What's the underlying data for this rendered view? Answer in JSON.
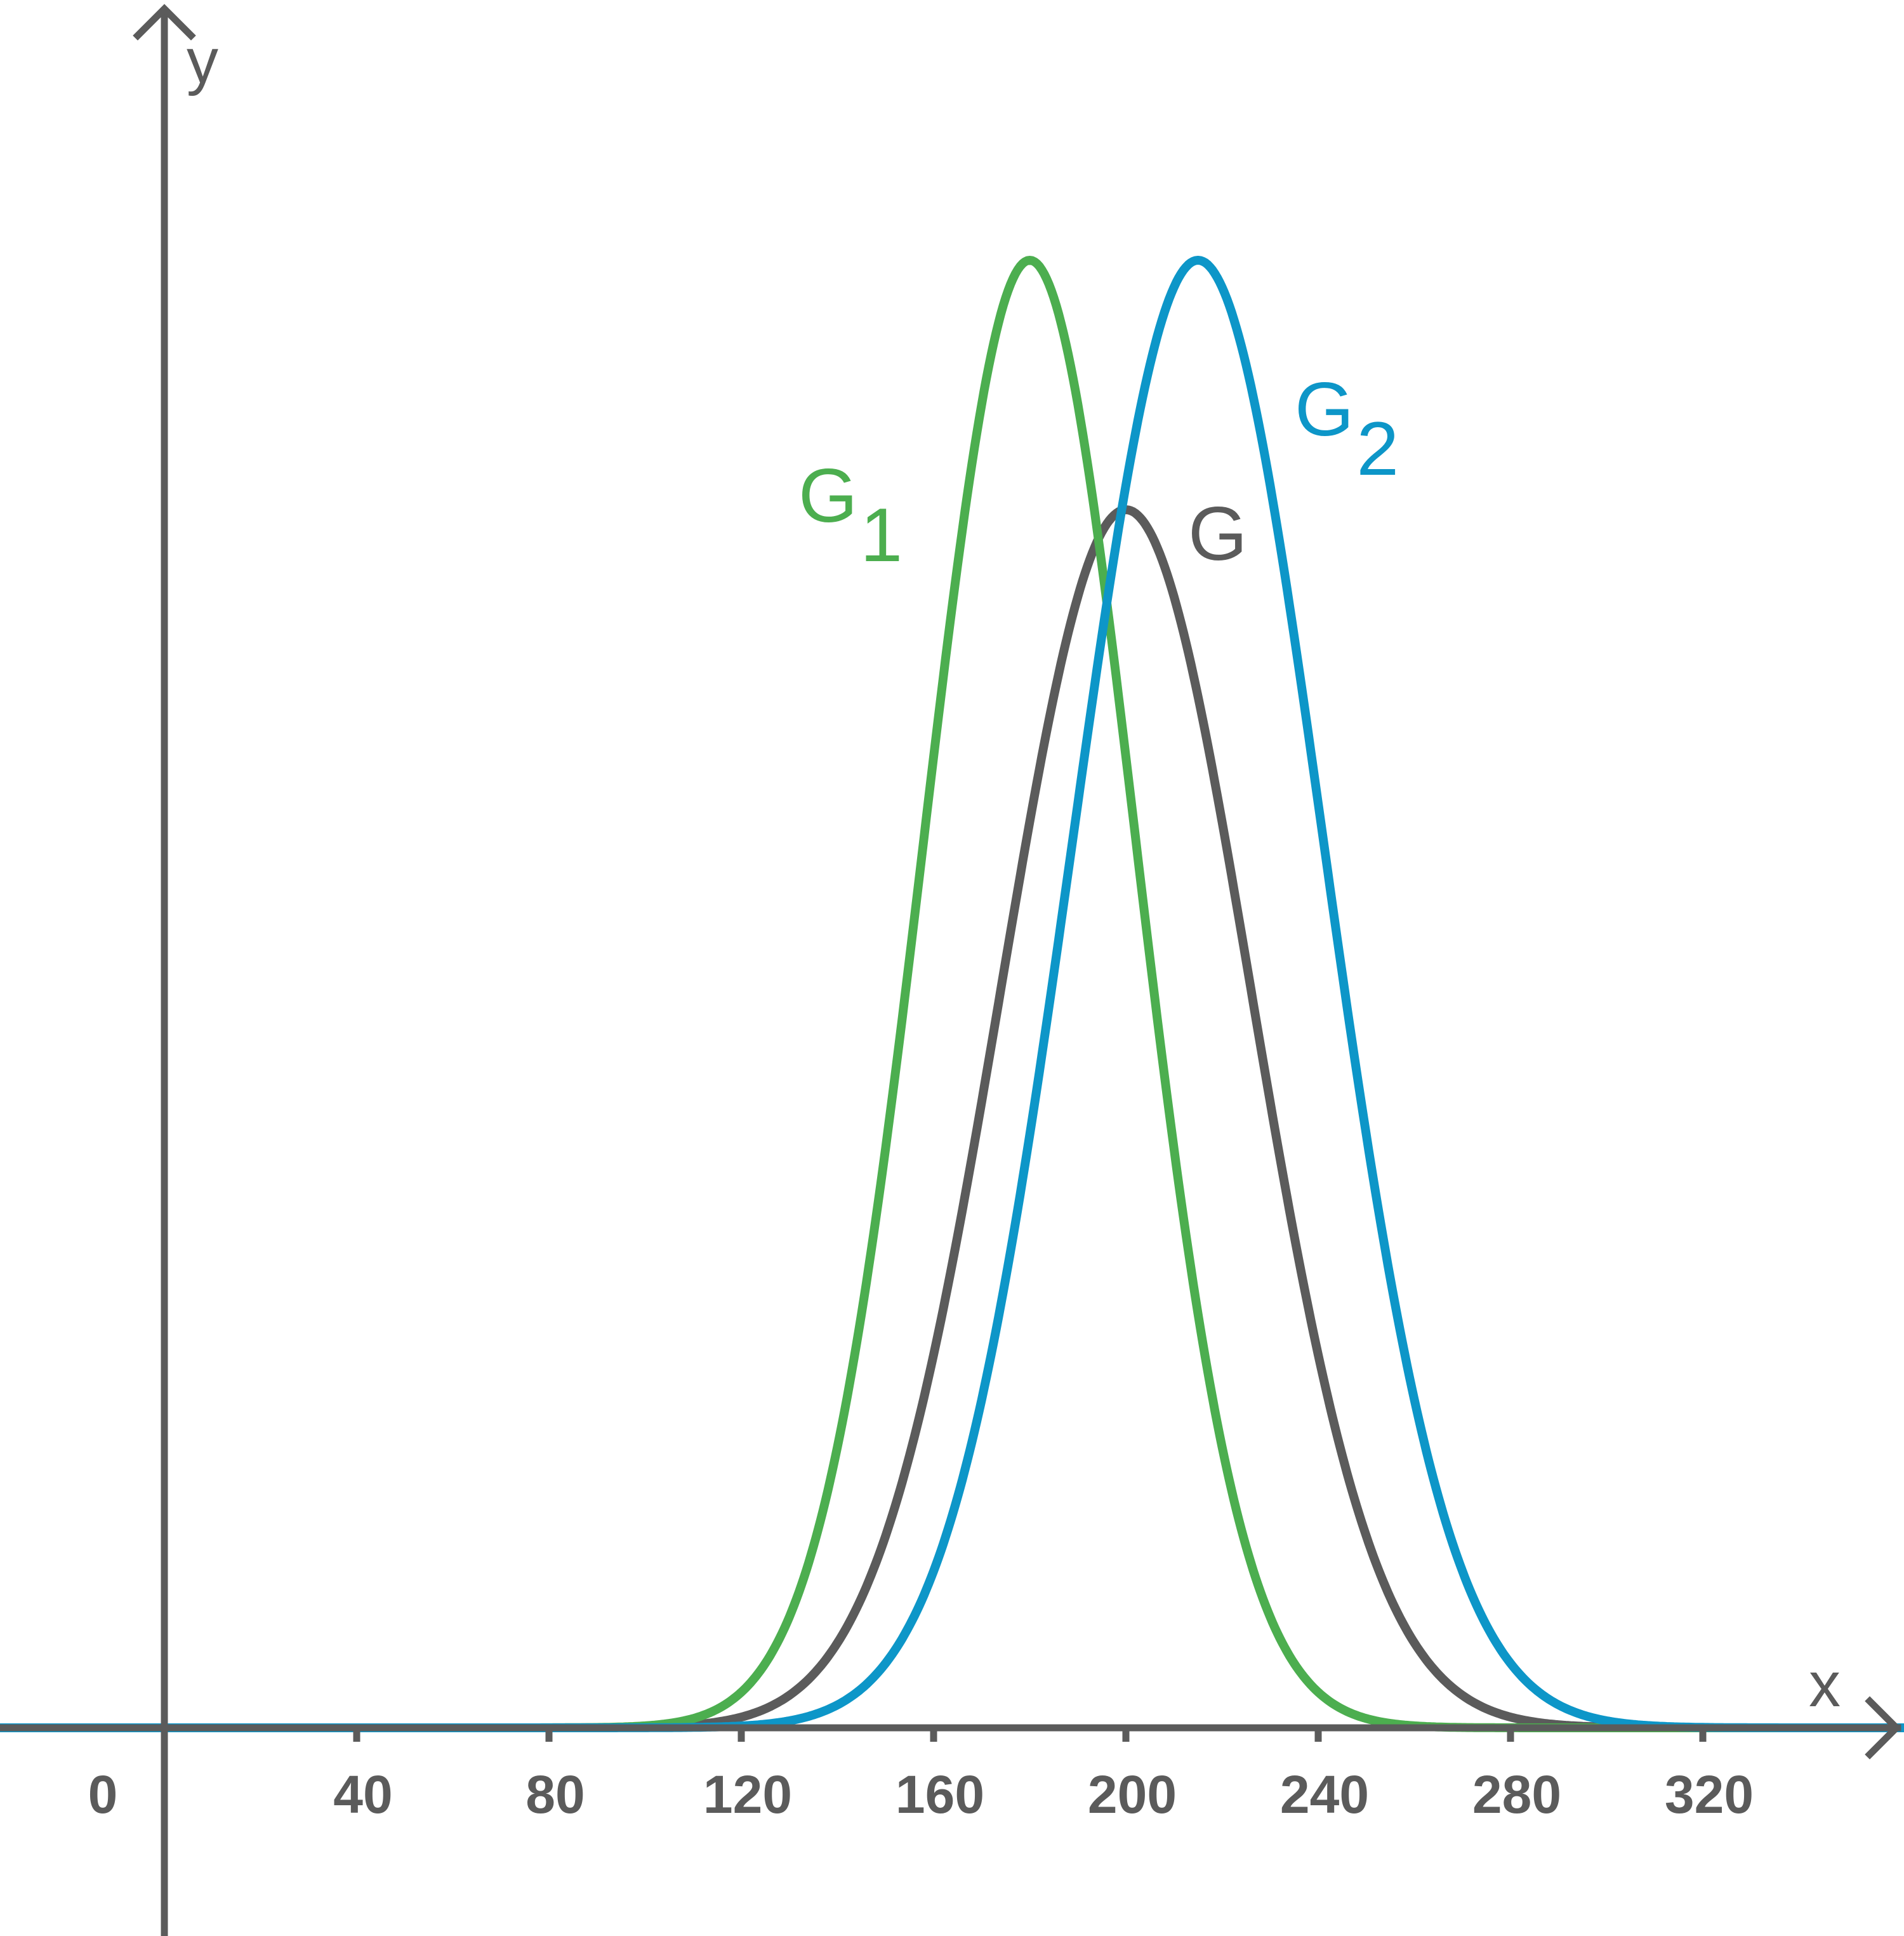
{
  "chart_data": {
    "type": "line",
    "xlabel": "x",
    "ylabel": "y",
    "xlim": [
      -34,
      362
    ],
    "x_ticks": [
      0,
      40,
      80,
      120,
      160,
      200,
      240,
      280,
      320
    ],
    "grid": false,
    "series": [
      {
        "name": "G",
        "label_main": "G",
        "label_sub": "",
        "color": "#5b5b5b",
        "mean": 200,
        "sd": 26,
        "relative_peak": 0.83
      },
      {
        "name": "G1",
        "label_main": "G",
        "label_sub": "1",
        "color": "#4cae4f",
        "mean": 180,
        "sd": 22,
        "relative_peak": 1.0
      },
      {
        "name": "G2",
        "label_main": "G",
        "label_sub": "2",
        "color": "#0d96c8",
        "mean": 215,
        "sd": 26,
        "relative_peak": 1.0
      }
    ]
  }
}
